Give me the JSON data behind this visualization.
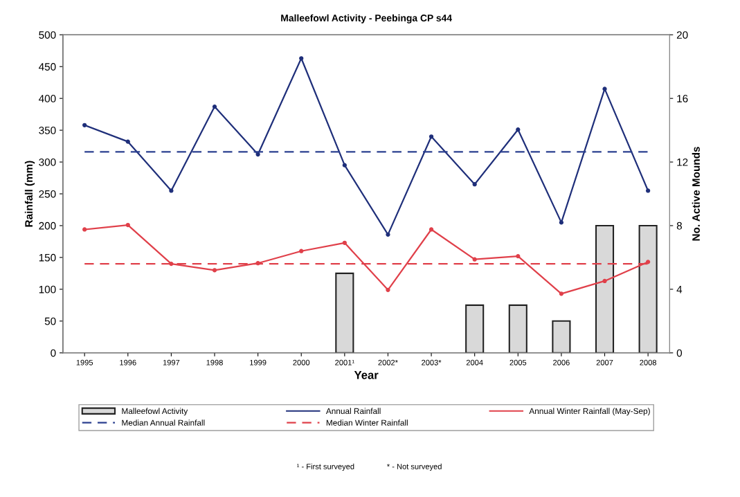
{
  "chart_data": {
    "type": "line",
    "title": "Malleefowl Activity - Peebinga CP s44",
    "xlabel": "Year",
    "ylabel": "Rainfall (mm)",
    "y2label": "No. Active Mounds",
    "categories": [
      "1995",
      "1996",
      "1997",
      "1998",
      "1999",
      "2000",
      "2001¹",
      "2002*",
      "2003*",
      "2004",
      "2005",
      "2006",
      "2007",
      "2008"
    ],
    "series": [
      {
        "name": "Malleefowl Activity",
        "type": "bar",
        "axis": "y2",
        "color": "#d9d9d9",
        "values": [
          null,
          null,
          null,
          null,
          null,
          null,
          5,
          null,
          null,
          3,
          3,
          2,
          8,
          8
        ]
      },
      {
        "name": "Annual Rainfall",
        "type": "line",
        "color": "#1f2f7a",
        "marker": "circle",
        "line_style": "solid",
        "values": [
          358,
          332,
          255,
          387,
          312,
          463,
          295,
          186,
          340,
          265,
          351,
          205,
          415,
          255
        ]
      },
      {
        "name": "Annual Winter Rainfall (May-Sep)",
        "type": "line",
        "color": "#e0404a",
        "marker": "circle",
        "line_style": "solid",
        "values": [
          194,
          201,
          140,
          130,
          141,
          160,
          173,
          99,
          194,
          147,
          152,
          93,
          113,
          143
        ]
      },
      {
        "name": "Median Annual Rainfall",
        "color": "#2a3f8f",
        "marker": "none",
        "line_style": "dashed",
        "values": [
          316,
          316,
          316,
          316,
          316,
          316,
          316,
          316,
          316,
          316,
          316,
          316,
          316,
          316
        ]
      },
      {
        "name": "Median Winter Rainfall",
        "color": "#e0404a",
        "marker": "none",
        "line_style": "dashed",
        "values": [
          140,
          140,
          140,
          140,
          140,
          140,
          140,
          140,
          140,
          140,
          140,
          140,
          140,
          140
        ]
      }
    ],
    "ylim": [
      0,
      500
    ],
    "yticks": [
      0,
      50,
      100,
      150,
      200,
      250,
      300,
      350,
      400,
      450,
      500
    ],
    "y2lim": [
      0,
      20
    ],
    "y2ticks": [
      0,
      4,
      8,
      12,
      16,
      20
    ],
    "legend": "bottom",
    "grid": false,
    "annotations": [
      "¹ - First surveyed",
      "* - Not surveyed"
    ]
  }
}
